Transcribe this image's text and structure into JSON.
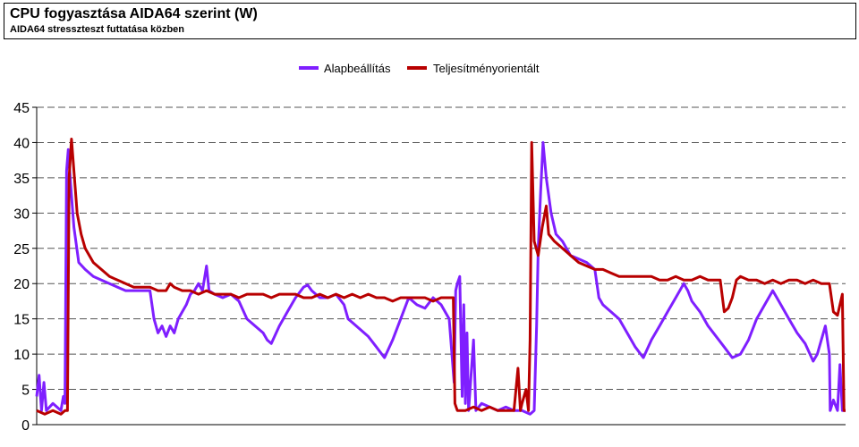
{
  "chart_data": {
    "type": "line",
    "title": "CPU fogyasztása AIDA64 szerint (W)",
    "subtitle": "AIDA64 stresszteszt futtatása közben",
    "xlabel": "",
    "ylabel": "",
    "ylim": [
      0,
      45
    ],
    "yticks": [
      0,
      5,
      10,
      15,
      20,
      25,
      30,
      35,
      40,
      45
    ],
    "grid": true,
    "legend_position": "top-center",
    "x_range": [
      0,
      100
    ],
    "series": [
      {
        "name": "Alapbeállítás",
        "color": "#7f1fff",
        "points": [
          [
            0,
            4
          ],
          [
            0.3,
            7
          ],
          [
            0.6,
            2
          ],
          [
            0.9,
            6
          ],
          [
            1.2,
            2
          ],
          [
            2,
            3
          ],
          [
            3,
            2
          ],
          [
            3.3,
            4
          ],
          [
            3.5,
            3
          ],
          [
            3.7,
            36
          ],
          [
            3.9,
            39
          ],
          [
            4.2,
            34
          ],
          [
            4.6,
            28
          ],
          [
            5.2,
            23
          ],
          [
            6,
            22
          ],
          [
            7,
            21
          ],
          [
            8,
            20.5
          ],
          [
            9,
            20
          ],
          [
            10,
            19.5
          ],
          [
            11,
            19
          ],
          [
            12,
            19
          ],
          [
            13,
            19
          ],
          [
            14,
            19
          ],
          [
            14.5,
            15
          ],
          [
            15,
            13
          ],
          [
            15.5,
            14
          ],
          [
            16,
            12.5
          ],
          [
            16.5,
            14
          ],
          [
            17,
            13
          ],
          [
            17.5,
            15
          ],
          [
            18,
            16
          ],
          [
            18.5,
            17
          ],
          [
            19,
            18.5
          ],
          [
            19.5,
            19
          ],
          [
            20,
            20
          ],
          [
            20.5,
            19
          ],
          [
            21,
            22.5
          ],
          [
            21.3,
            19
          ],
          [
            22,
            18.5
          ],
          [
            23,
            18
          ],
          [
            24,
            18.5
          ],
          [
            25,
            17.5
          ],
          [
            26,
            15
          ],
          [
            27,
            14
          ],
          [
            28,
            13
          ],
          [
            28.5,
            12
          ],
          [
            29,
            11.5
          ],
          [
            30,
            14
          ],
          [
            31,
            16
          ],
          [
            32,
            18
          ],
          [
            33,
            19.5
          ],
          [
            33.5,
            19.8
          ],
          [
            34,
            19
          ],
          [
            35,
            18
          ],
          [
            36,
            18
          ],
          [
            37,
            18.5
          ],
          [
            38,
            17
          ],
          [
            38.5,
            15
          ],
          [
            39,
            14.5
          ],
          [
            40,
            13.5
          ],
          [
            41,
            12.5
          ],
          [
            42,
            11
          ],
          [
            43,
            9.5
          ],
          [
            44,
            12
          ],
          [
            45,
            15
          ],
          [
            46,
            18
          ],
          [
            47,
            17
          ],
          [
            48,
            16.5
          ],
          [
            49,
            18
          ],
          [
            50,
            17
          ],
          [
            51,
            15
          ],
          [
            51.6,
            6
          ],
          [
            51.8,
            19
          ],
          [
            52,
            20
          ],
          [
            52.3,
            21
          ],
          [
            52.6,
            4
          ],
          [
            52.8,
            17
          ],
          [
            53,
            3
          ],
          [
            53.2,
            13
          ],
          [
            53.4,
            2
          ],
          [
            54,
            12
          ],
          [
            54.3,
            2
          ],
          [
            55,
            3
          ],
          [
            56,
            2.5
          ],
          [
            57,
            2
          ],
          [
            58,
            2.5
          ],
          [
            59,
            2
          ],
          [
            60,
            2
          ],
          [
            61,
            1.5
          ],
          [
            61.5,
            2
          ],
          [
            61.8,
            14
          ],
          [
            62,
            25
          ],
          [
            62.3,
            33
          ],
          [
            62.6,
            40
          ],
          [
            63,
            35
          ],
          [
            63.6,
            30
          ],
          [
            64.2,
            27
          ],
          [
            65,
            26
          ],
          [
            66,
            24
          ],
          [
            67,
            23.5
          ],
          [
            68,
            23
          ],
          [
            69,
            22
          ],
          [
            69.5,
            18
          ],
          [
            70,
            17
          ],
          [
            71,
            16
          ],
          [
            72,
            15
          ],
          [
            73,
            13
          ],
          [
            74,
            11
          ],
          [
            75,
            9.5
          ],
          [
            76,
            12
          ],
          [
            77,
            14
          ],
          [
            78,
            16
          ],
          [
            79,
            18
          ],
          [
            80,
            20
          ],
          [
            80.5,
            19
          ],
          [
            81,
            17.5
          ],
          [
            82,
            16
          ],
          [
            83,
            14
          ],
          [
            84,
            12.5
          ],
          [
            85,
            11
          ],
          [
            86,
            9.5
          ],
          [
            87,
            10
          ],
          [
            88,
            12
          ],
          [
            89,
            15
          ],
          [
            90,
            17
          ],
          [
            91,
            19
          ],
          [
            91.5,
            18
          ],
          [
            92,
            17
          ],
          [
            93,
            15
          ],
          [
            94,
            13
          ],
          [
            95,
            11.5
          ],
          [
            96,
            9
          ],
          [
            96.5,
            10
          ],
          [
            97,
            12
          ],
          [
            97.5,
            14
          ],
          [
            98,
            10
          ],
          [
            98.1,
            2
          ],
          [
            98.5,
            3.5
          ],
          [
            99,
            2
          ],
          [
            99.3,
            8.5
          ],
          [
            99.6,
            2
          ],
          [
            100,
            2
          ]
        ]
      },
      {
        "name": "Teljesítményorientált",
        "color": "#b80000",
        "points": [
          [
            0,
            2
          ],
          [
            1,
            1.5
          ],
          [
            2,
            2
          ],
          [
            3,
            1.5
          ],
          [
            3.5,
            2
          ],
          [
            3.8,
            2
          ],
          [
            4,
            35
          ],
          [
            4.3,
            40.5
          ],
          [
            4.6,
            36
          ],
          [
            5,
            30
          ],
          [
            5.5,
            27
          ],
          [
            6,
            25
          ],
          [
            7,
            23
          ],
          [
            8,
            22
          ],
          [
            9,
            21
          ],
          [
            10,
            20.5
          ],
          [
            11,
            20
          ],
          [
            12,
            19.5
          ],
          [
            13,
            19.5
          ],
          [
            14,
            19.5
          ],
          [
            15,
            19
          ],
          [
            16,
            19
          ],
          [
            16.5,
            20
          ],
          [
            17,
            19.5
          ],
          [
            18,
            19
          ],
          [
            19,
            19
          ],
          [
            20,
            18.5
          ],
          [
            21,
            19
          ],
          [
            22,
            18.5
          ],
          [
            23,
            18.5
          ],
          [
            24,
            18.5
          ],
          [
            25,
            18
          ],
          [
            26,
            18.5
          ],
          [
            27,
            18.5
          ],
          [
            28,
            18.5
          ],
          [
            29,
            18
          ],
          [
            30,
            18.5
          ],
          [
            31,
            18.5
          ],
          [
            32,
            18.5
          ],
          [
            33,
            18
          ],
          [
            34,
            18
          ],
          [
            35,
            18.5
          ],
          [
            36,
            18
          ],
          [
            37,
            18.5
          ],
          [
            38,
            18
          ],
          [
            39,
            18.5
          ],
          [
            40,
            18
          ],
          [
            41,
            18.5
          ],
          [
            42,
            18
          ],
          [
            43,
            18
          ],
          [
            44,
            17.5
          ],
          [
            45,
            18
          ],
          [
            46,
            18
          ],
          [
            47,
            18
          ],
          [
            48,
            18
          ],
          [
            49,
            17.5
          ],
          [
            50,
            18
          ],
          [
            51,
            18
          ],
          [
            51.5,
            18
          ],
          [
            51.7,
            3
          ],
          [
            52,
            2
          ],
          [
            53,
            2
          ],
          [
            54,
            2.5
          ],
          [
            55,
            2
          ],
          [
            56,
            2.5
          ],
          [
            57,
            2
          ],
          [
            58,
            2
          ],
          [
            59,
            2
          ],
          [
            59.5,
            8
          ],
          [
            59.8,
            2
          ],
          [
            60,
            3
          ],
          [
            60.5,
            5
          ],
          [
            60.8,
            2
          ],
          [
            61,
            12
          ],
          [
            61.2,
            40
          ],
          [
            61.5,
            26
          ],
          [
            62,
            24
          ],
          [
            62.5,
            28
          ],
          [
            63,
            31
          ],
          [
            63.3,
            27
          ],
          [
            64,
            26
          ],
          [
            65,
            25
          ],
          [
            66,
            24
          ],
          [
            67,
            23
          ],
          [
            68,
            22.5
          ],
          [
            69,
            22
          ],
          [
            70,
            22
          ],
          [
            71,
            21.5
          ],
          [
            72,
            21
          ],
          [
            73,
            21
          ],
          [
            74,
            21
          ],
          [
            75,
            21
          ],
          [
            76,
            21
          ],
          [
            77,
            20.5
          ],
          [
            78,
            20.5
          ],
          [
            79,
            21
          ],
          [
            80,
            20.5
          ],
          [
            81,
            20.5
          ],
          [
            82,
            21
          ],
          [
            83,
            20.5
          ],
          [
            84,
            20.5
          ],
          [
            84.5,
            20.5
          ],
          [
            85,
            16
          ],
          [
            85.5,
            16.5
          ],
          [
            86,
            18
          ],
          [
            86.5,
            20.5
          ],
          [
            87,
            21
          ],
          [
            88,
            20.5
          ],
          [
            89,
            20.5
          ],
          [
            90,
            20
          ],
          [
            91,
            20.5
          ],
          [
            92,
            20
          ],
          [
            93,
            20.5
          ],
          [
            94,
            20.5
          ],
          [
            95,
            20
          ],
          [
            96,
            20.5
          ],
          [
            97,
            20
          ],
          [
            98,
            20
          ],
          [
            98.5,
            16
          ],
          [
            99,
            15.5
          ],
          [
            99.3,
            17
          ],
          [
            99.6,
            18.5
          ],
          [
            99.8,
            2
          ],
          [
            100,
            2
          ]
        ]
      }
    ]
  }
}
